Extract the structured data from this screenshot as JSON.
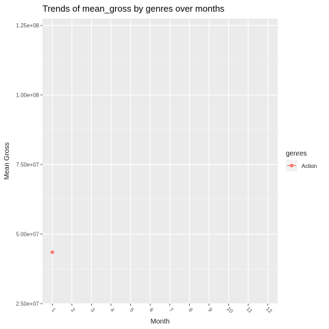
{
  "chart_data": {
    "type": "line",
    "title": "Trends of mean_gross by genres over months",
    "xlabel": "Month",
    "ylabel": "Mean Gross",
    "x": [
      1,
      2,
      3,
      4,
      5,
      6,
      7,
      8,
      9,
      10,
      11,
      12
    ],
    "x_ticks": [
      "1",
      "2",
      "3",
      "4",
      "5",
      "6",
      "7",
      "8",
      "9",
      "10",
      "11",
      "12"
    ],
    "y_ticks": [
      {
        "value": 25000000,
        "label": "2.50e+07"
      },
      {
        "value": 50000000,
        "label": "5.00e+07"
      },
      {
        "value": 75000000,
        "label": "7.50e+07"
      },
      {
        "value": 100000000,
        "label": "1.00e+08"
      },
      {
        "value": 125000000,
        "label": "1.25e+08"
      }
    ],
    "ylim": [
      25000000,
      127500000
    ],
    "xlim": [
      0.5,
      12.5
    ],
    "grid": true,
    "legend": {
      "title": "genres",
      "position": "right"
    },
    "series": [
      {
        "name": "Action",
        "color": "#F8766D",
        "points": [
          {
            "x": 1,
            "y": 43500000
          }
        ]
      }
    ]
  }
}
